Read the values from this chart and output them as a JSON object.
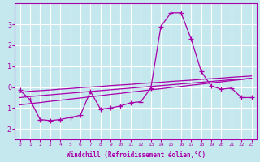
{
  "xlabel": "Windchill (Refroidissement éolien,°C)",
  "background_color": "#c5e8ee",
  "grid_color": "#ffffff",
  "line_color": "#aa00aa",
  "x_values": [
    0,
    1,
    2,
    3,
    4,
    5,
    6,
    7,
    8,
    9,
    10,
    11,
    12,
    13,
    14,
    15,
    16,
    17,
    18,
    19,
    20,
    21,
    22,
    23
  ],
  "y_main": [
    -0.15,
    -0.6,
    -1.55,
    -1.6,
    -1.55,
    -1.45,
    -1.35,
    -0.2,
    -1.05,
    -1.0,
    -0.9,
    -0.75,
    -0.7,
    -0.05,
    2.9,
    3.55,
    3.55,
    2.3,
    0.75,
    0.05,
    -0.1,
    -0.05,
    -0.5,
    -0.5
  ],
  "y_line1": [
    -0.25,
    -0.2,
    -0.17,
    -0.14,
    -0.1,
    -0.07,
    -0.03,
    0.0,
    0.03,
    0.07,
    0.1,
    0.13,
    0.17,
    0.2,
    0.23,
    0.27,
    0.3,
    0.33,
    0.37,
    0.4,
    0.43,
    0.47,
    0.5,
    0.53
  ],
  "y_line2": [
    -0.5,
    -0.45,
    -0.41,
    -0.37,
    -0.33,
    -0.29,
    -0.25,
    -0.21,
    -0.17,
    -0.13,
    -0.09,
    -0.05,
    -0.01,
    0.03,
    0.07,
    0.11,
    0.15,
    0.19,
    0.23,
    0.27,
    0.31,
    0.35,
    0.38,
    0.42
  ],
  "y_line3": [
    -0.85,
    -0.79,
    -0.74,
    -0.68,
    -0.63,
    -0.57,
    -0.52,
    -0.46,
    -0.41,
    -0.35,
    -0.3,
    -0.24,
    -0.19,
    -0.13,
    -0.08,
    -0.02,
    0.03,
    0.09,
    0.14,
    0.2,
    0.25,
    0.31,
    0.36,
    0.42
  ],
  "ylim": [
    -2.5,
    4.0
  ],
  "xlim": [
    -0.5,
    23.5
  ],
  "yticks": [
    -2,
    -1,
    0,
    1,
    2,
    3
  ],
  "xticks": [
    0,
    1,
    2,
    3,
    4,
    5,
    6,
    7,
    8,
    9,
    10,
    11,
    12,
    13,
    14,
    15,
    16,
    17,
    18,
    19,
    20,
    21,
    22,
    23
  ],
  "figsize": [
    3.2,
    2.0
  ],
  "dpi": 100
}
